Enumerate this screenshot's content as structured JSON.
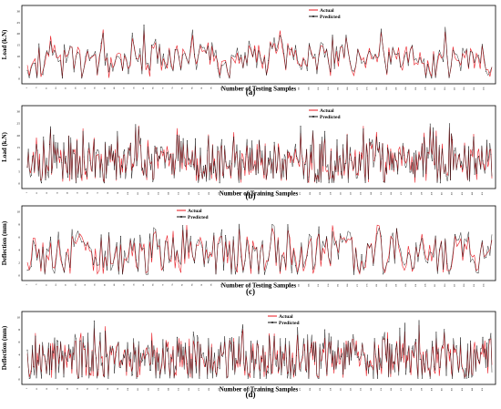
{
  "colors": {
    "actual": "#e8131b",
    "predicted": "#111111",
    "frame": "#000000"
  },
  "chart_data": [
    {
      "type": "line",
      "panel_label": "(a)",
      "ylabel": "Load (k.N)",
      "xlabel": "Number of Testing Samples",
      "ylim": [
        0,
        30
      ],
      "yticks": [
        "0",
        "5",
        "10",
        "15",
        "20",
        "25",
        "30"
      ],
      "n_points": 240,
      "seed": 11,
      "mean": 9,
      "spread": 6,
      "peak": 22,
      "legend": {
        "position": "top-right",
        "entries": [
          "Actual",
          "Predicted"
        ]
      },
      "series": [
        {
          "name": "Actual",
          "color": "#e8131b",
          "values": []
        },
        {
          "name": "Predicted",
          "color": "#111111",
          "values": []
        }
      ]
    },
    {
      "type": "line",
      "panel_label": "(b)",
      "ylabel": "Load (k.N)",
      "xlabel": "Number of Training Samples",
      "ylim": [
        0,
        30
      ],
      "yticks": [
        "0",
        "5",
        "10",
        "15",
        "20",
        "25",
        "30"
      ],
      "n_points": 460,
      "seed": 23,
      "mean": 10,
      "spread": 7,
      "peak": 24,
      "legend": {
        "position": "top-right",
        "entries": [
          "Actual",
          "Predicted"
        ]
      },
      "series": [
        {
          "name": "Actual",
          "color": "#e8131b",
          "values": []
        },
        {
          "name": "Predicted",
          "color": "#111111",
          "values": []
        }
      ]
    },
    {
      "type": "line",
      "panel_label": "(c)",
      "ylabel": "Deflection (mm)",
      "xlabel": "Number of Testing Samples",
      "ylim": [
        0,
        10
      ],
      "yticks": [
        "0",
        "2",
        "4",
        "6",
        "8",
        "10"
      ],
      "n_points": 240,
      "seed": 37,
      "mean": 3.5,
      "spread": 3,
      "peak": 8.5,
      "legend": {
        "position": "top-left",
        "entries": [
          "Actual",
          "Predicted"
        ]
      },
      "series": [
        {
          "name": "Actual",
          "color": "#e8131b",
          "values": []
        },
        {
          "name": "Predicted",
          "color": "#111111",
          "values": []
        }
      ]
    },
    {
      "type": "line",
      "panel_label": "(d)",
      "ylabel": "Deflection (mm)",
      "xlabel": "Number of Training Samples",
      "ylim": [
        0,
        10
      ],
      "yticks": [
        "0",
        "2",
        "4",
        "6",
        "8",
        "10"
      ],
      "n_points": 460,
      "seed": 53,
      "mean": 3.5,
      "spread": 3.2,
      "peak": 8.8,
      "legend": {
        "position": "top-center",
        "entries": [
          "Actual",
          "Predicted"
        ]
      },
      "series": [
        {
          "name": "Actual",
          "color": "#e8131b",
          "values": []
        },
        {
          "name": "Predicted",
          "color": "#111111",
          "values": []
        }
      ]
    }
  ]
}
